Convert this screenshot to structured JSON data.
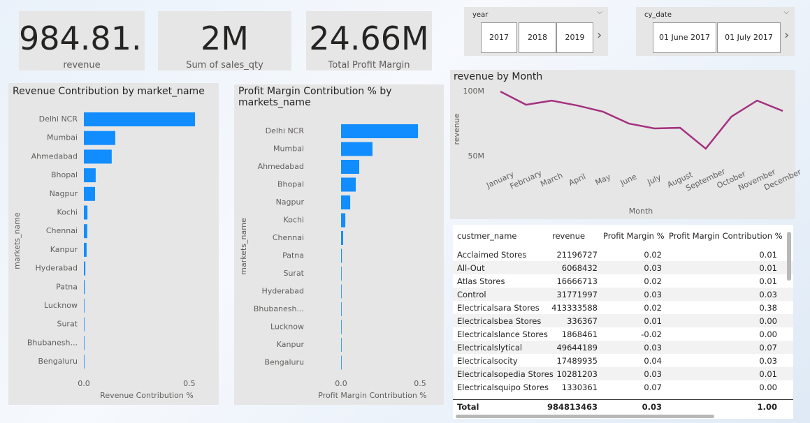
{
  "cards": [
    {
      "value": "984.81...",
      "label": "revenue"
    },
    {
      "value": "2M",
      "label": "Sum of sales_qty"
    },
    {
      "value": "24.66M",
      "label": "Total Profit Margin"
    }
  ],
  "slicers": [
    {
      "title": "year",
      "options": [
        "2017",
        "2018",
        "2019"
      ]
    },
    {
      "title": "cy_date",
      "options": [
        "01 June 2017",
        "01 July 2017"
      ]
    }
  ],
  "chart_data": [
    {
      "type": "bar",
      "orientation": "horizontal",
      "title": "Revenue Contribution by market_name",
      "x_label": "Revenue Contribution %",
      "y_label": "markets_name",
      "color": "#118dff",
      "categories": [
        "Delhi NCR",
        "Mumbai",
        "Ahmedabad",
        "Bhopal",
        "Nagpur",
        "Kochi",
        "Chennai",
        "Kanpur",
        "Hyderabad",
        "Patna",
        "Lucknow",
        "Surat",
        "Bhubanesh...",
        "Bengaluru"
      ],
      "values": [
        0.527,
        0.149,
        0.132,
        0.056,
        0.053,
        0.017,
        0.016,
        0.013,
        0.007,
        0.004,
        0.002,
        0.001,
        0.0005,
        0.0003
      ],
      "xlim": [
        0,
        0.56
      ],
      "xticks": [
        {
          "value": 0,
          "label": "0.0"
        },
        {
          "value": 0.5,
          "label": "0.5"
        }
      ]
    },
    {
      "type": "bar",
      "orientation": "horizontal",
      "title": "Profit Margin Contribution % by markets_name",
      "x_label": "Profit Margin Contribution %",
      "y_label": "markets_name",
      "color": "#118dff",
      "categories": [
        "Delhi NCR",
        "Mumbai",
        "Ahmedabad",
        "Bhopal",
        "Nagpur",
        "Kochi",
        "Chennai",
        "Patna",
        "Surat",
        "Hyderabad",
        "Bhubanesh...",
        "Lucknow",
        "Kanpur",
        "Bengaluru"
      ],
      "values": [
        0.487,
        0.199,
        0.115,
        0.093,
        0.058,
        0.027,
        0.013,
        0.005,
        0.003,
        0.002,
        0.001,
        0.001,
        0.0005,
        0.0003
      ],
      "xlim": [
        0,
        0.56
      ],
      "xticks": [
        {
          "value": 0,
          "label": "0.0"
        },
        {
          "value": 0.5,
          "label": "0.5"
        }
      ]
    },
    {
      "type": "line",
      "title": "revenue by Month",
      "x_label": "Month",
      "y_label": "revenue",
      "color": "#a4317f",
      "categories": [
        "January",
        "February",
        "March",
        "April",
        "May",
        "June",
        "July",
        "August",
        "September",
        "October",
        "November",
        "December"
      ],
      "values": [
        100000000,
        89800000,
        93000000,
        89200000,
        84400000,
        75300000,
        71500000,
        72000000,
        55900000,
        80600000,
        93000000,
        85000000
      ],
      "ylim": [
        44000000,
        106000000
      ],
      "yticks": [
        {
          "value": 50000000,
          "label": "50M"
        },
        {
          "value": 100000000,
          "label": "100M"
        }
      ]
    }
  ],
  "table": {
    "columns": [
      "custmer_name",
      "revenue",
      "Profit Margin %",
      "Profit Margin Contribution %"
    ],
    "rows": [
      [
        "Acclaimed Stores",
        "21196727",
        "0.02",
        "0.01"
      ],
      [
        "All-Out",
        "6068432",
        "0.03",
        "0.01"
      ],
      [
        "Atlas Stores",
        "16666713",
        "0.02",
        "0.01"
      ],
      [
        "Control",
        "31771997",
        "0.03",
        "0.03"
      ],
      [
        "Electricalsara Stores",
        "413333588",
        "0.02",
        "0.38"
      ],
      [
        "Electricalsbea Stores",
        "336367",
        "0.01",
        "0.00"
      ],
      [
        "Electricalslance Stores",
        "1868461",
        "-0.02",
        "0.00"
      ],
      [
        "Electricalslytical",
        "49644189",
        "0.03",
        "0.07"
      ],
      [
        "Electricalsocity",
        "17489935",
        "0.04",
        "0.03"
      ],
      [
        "Electricalsopedia Stores",
        "10281203",
        "0.03",
        "0.01"
      ],
      [
        "Electricalsquipo Stores",
        "1330361",
        "0.07",
        "0.00"
      ]
    ],
    "total": [
      "Total",
      "984813463",
      "0.03",
      "1.00"
    ]
  }
}
